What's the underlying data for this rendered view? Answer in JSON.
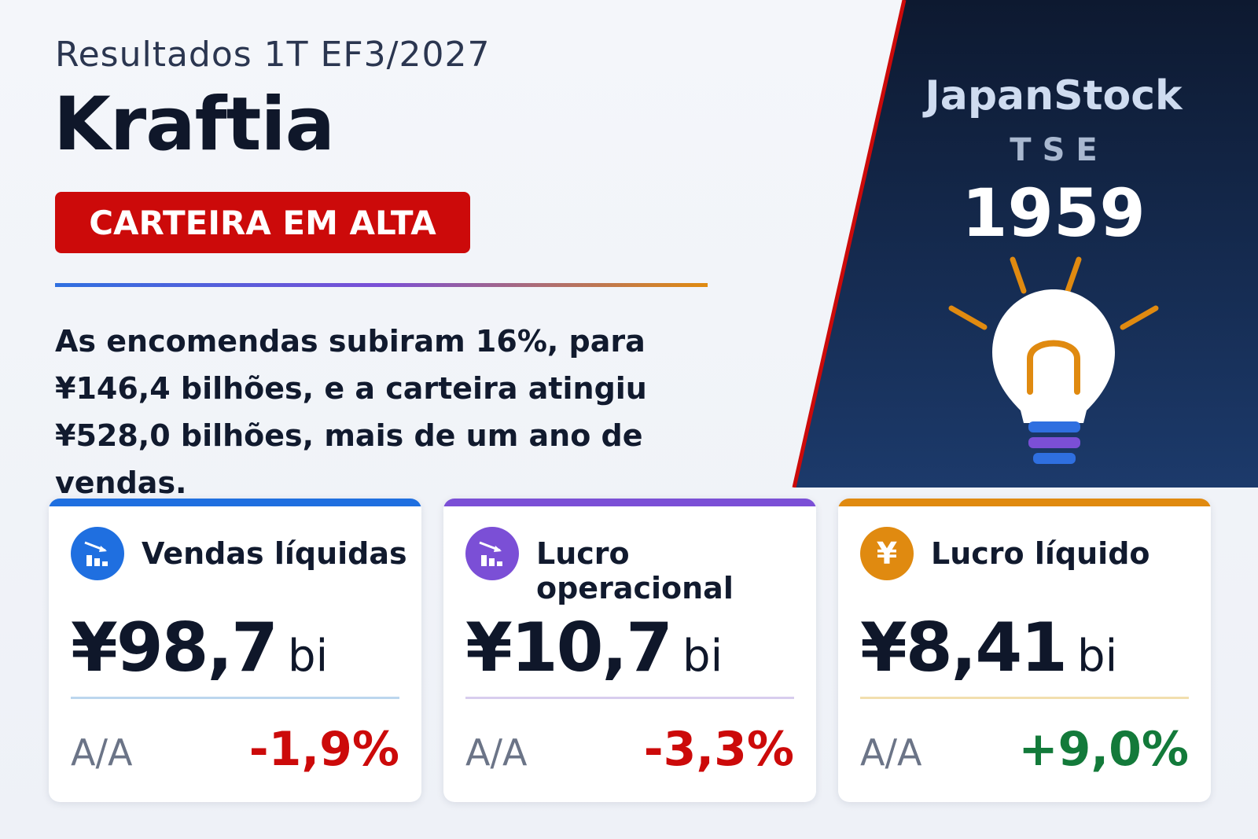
{
  "header": {
    "period": "Resultados 1T EF3/2027",
    "company": "Kraftia",
    "badge": "CARTEIRA EM ALTA"
  },
  "summary": "As encomendas subiram 16%, para ¥146,4 bilhões, e a carteira atingiu ¥528,0 bilhões, mais de um ano de vendas.",
  "exchange": {
    "brand": "JapanStock",
    "market": "TSE",
    "code": "1959",
    "icon": "lightbulb-icon"
  },
  "cards": [
    {
      "title": "Vendas líquidas",
      "value": "¥98,7",
      "unit": "bi",
      "yoy_label": "A/A",
      "yoy": "-1,9%",
      "icon": "bar-chart-down-icon",
      "color": "#1f6fe0",
      "divider": "#bcd6ee"
    },
    {
      "title": "Lucro operacional",
      "value": "¥10,7",
      "unit": "bi",
      "yoy_label": "A/A",
      "yoy": "-3,3%",
      "icon": "bar-chart-down-icon",
      "color": "#7b4fd6",
      "divider": "#d8cdee"
    },
    {
      "title": "Lucro líquido",
      "value": "¥8,41",
      "unit": "bi",
      "yoy_label": "A/A",
      "yoy": "+9,0%",
      "icon": "yen-icon",
      "color": "#e08a10",
      "divider": "#f2dfae"
    }
  ],
  "colors": {
    "accent_red": "#cc0a0a",
    "panel_dark": "#0e1a33",
    "positive": "#137a3a"
  }
}
